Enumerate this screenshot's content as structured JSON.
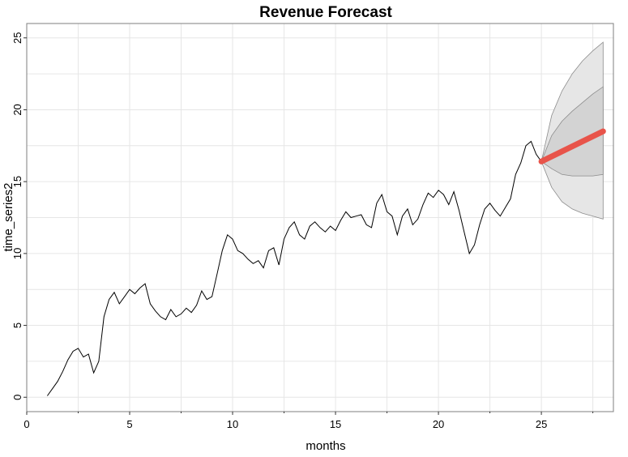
{
  "chart_data": {
    "type": "line",
    "title": "Revenue Forecast",
    "xlabel": "months",
    "ylabel": "time_series2",
    "xlim": [
      0,
      28.5
    ],
    "ylim": [
      -1,
      26
    ],
    "xticks": [
      0,
      5,
      10,
      15,
      20,
      25
    ],
    "yticks": [
      0,
      5,
      10,
      15,
      20,
      25
    ],
    "xtick_labels": [
      "0",
      "5",
      "10",
      "15",
      "20",
      "25"
    ],
    "ytick_labels": [
      "0",
      "5",
      "10",
      "15",
      "20",
      "25"
    ],
    "grid": true,
    "y_tick_labels_rotated": true,
    "colors": {
      "history": "#000000",
      "forecast": "#e8544a",
      "band_outer": "#e6e6e6",
      "band_inner": "#d3d3d3",
      "band_edge": "#8c8c8c",
      "grid": "#e6e6e6",
      "frame": "#7f7f7f"
    },
    "history": {
      "x": [
        1.0,
        1.25,
        1.5,
        1.75,
        2.0,
        2.25,
        2.5,
        2.75,
        3.0,
        3.25,
        3.5,
        3.75,
        4.0,
        4.25,
        4.5,
        4.75,
        5.0,
        5.25,
        5.5,
        5.75,
        6.0,
        6.25,
        6.5,
        6.75,
        7.0,
        7.25,
        7.5,
        7.75,
        8.0,
        8.25,
        8.5,
        8.75,
        9.0,
        9.25,
        9.5,
        9.75,
        10.0,
        10.25,
        10.5,
        10.75,
        11.0,
        11.25,
        11.5,
        11.75,
        12.0,
        12.25,
        12.5,
        12.75,
        13.0,
        13.25,
        13.5,
        13.75,
        14.0,
        14.25,
        14.5,
        14.75,
        15.0,
        15.25,
        15.5,
        15.75,
        16.0,
        16.25,
        16.5,
        16.75,
        17.0,
        17.25,
        17.5,
        17.75,
        18.0,
        18.25,
        18.5,
        18.75,
        19.0,
        19.25,
        19.5,
        19.75,
        20.0,
        20.25,
        20.5,
        20.75,
        21.0,
        21.25,
        21.5,
        21.75,
        22.0,
        22.25,
        22.5,
        22.75,
        23.0,
        23.25,
        23.5,
        23.75,
        24.0,
        24.25,
        24.5,
        24.75,
        25.0
      ],
      "y": [
        0.1,
        0.6,
        1.1,
        1.8,
        2.6,
        3.2,
        3.4,
        2.8,
        3.0,
        1.7,
        2.5,
        5.6,
        6.8,
        7.3,
        6.5,
        7.0,
        7.5,
        7.2,
        7.6,
        7.9,
        6.5,
        6.0,
        5.6,
        5.4,
        6.1,
        5.6,
        5.8,
        6.2,
        5.9,
        6.4,
        7.4,
        6.8,
        7.0,
        8.6,
        10.2,
        11.3,
        11.0,
        10.2,
        10.0,
        9.6,
        9.3,
        9.5,
        9.0,
        10.2,
        10.4,
        9.2,
        11.0,
        11.8,
        12.2,
        11.3,
        11.0,
        11.9,
        12.2,
        11.8,
        11.5,
        11.9,
        11.6,
        12.3,
        12.9,
        12.5,
        12.6,
        12.7,
        12.0,
        11.8,
        13.5,
        14.1,
        12.9,
        12.6,
        11.3,
        12.6,
        13.1,
        12.0,
        12.4,
        13.4,
        14.2,
        13.9,
        14.4,
        14.1,
        13.4,
        14.3,
        13.0,
        11.5,
        10.0,
        10.6,
        12.0,
        13.1,
        13.5,
        13.0,
        12.6,
        13.2,
        13.8,
        15.5,
        16.3,
        17.5,
        17.8,
        16.9,
        16.4
      ]
    },
    "forecast": {
      "x": [
        25.0,
        28.0
      ],
      "y": [
        16.4,
        18.5
      ]
    },
    "band_80": {
      "x": [
        25.0,
        25.5,
        26.0,
        26.5,
        27.0,
        27.5,
        28.0
      ],
      "lower": [
        16.4,
        15.9,
        15.5,
        15.4,
        15.4,
        15.4,
        15.5
      ],
      "upper": [
        16.4,
        18.2,
        19.2,
        19.9,
        20.5,
        21.1,
        21.6
      ]
    },
    "band_95": {
      "x": [
        25.0,
        25.5,
        26.0,
        26.5,
        27.0,
        27.5,
        28.0
      ],
      "lower": [
        16.4,
        14.6,
        13.6,
        13.1,
        12.8,
        12.6,
        12.4
      ],
      "upper": [
        16.4,
        19.6,
        21.3,
        22.5,
        23.4,
        24.1,
        24.7
      ]
    }
  }
}
